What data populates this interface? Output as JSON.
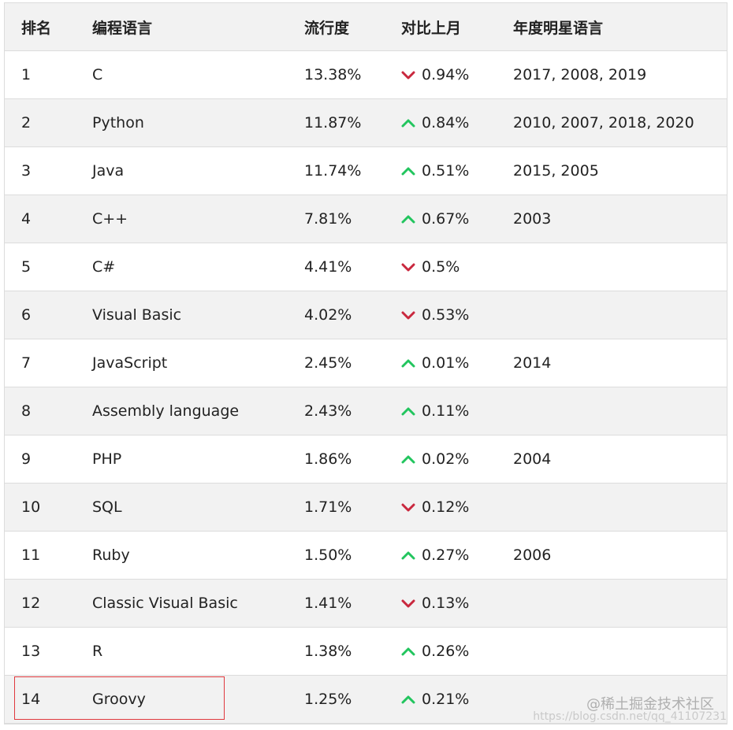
{
  "table": {
    "headers": {
      "rank": "排名",
      "language": "编程语言",
      "popularity": "流行度",
      "change": "对比上月",
      "star_years": "年度明星语言"
    },
    "rows": [
      {
        "rank": "1",
        "language": "C",
        "popularity": "13.38%",
        "direction": "down",
        "change": "0.94%",
        "star_years": "2017, 2008, 2019"
      },
      {
        "rank": "2",
        "language": "Python",
        "popularity": "11.87%",
        "direction": "up",
        "change": "0.84%",
        "star_years": "2010, 2007, 2018, 2020"
      },
      {
        "rank": "3",
        "language": "Java",
        "popularity": "11.74%",
        "direction": "up",
        "change": "0.51%",
        "star_years": "2015, 2005"
      },
      {
        "rank": "4",
        "language": "C++",
        "popularity": "7.81%",
        "direction": "up",
        "change": "0.67%",
        "star_years": "2003"
      },
      {
        "rank": "5",
        "language": "C#",
        "popularity": "4.41%",
        "direction": "down",
        "change": "0.5%",
        "star_years": ""
      },
      {
        "rank": "6",
        "language": "Visual Basic",
        "popularity": "4.02%",
        "direction": "down",
        "change": "0.53%",
        "star_years": ""
      },
      {
        "rank": "7",
        "language": "JavaScript",
        "popularity": "2.45%",
        "direction": "up",
        "change": "0.01%",
        "star_years": "2014"
      },
      {
        "rank": "8",
        "language": "Assembly language",
        "popularity": "2.43%",
        "direction": "up",
        "change": "0.11%",
        "star_years": ""
      },
      {
        "rank": "9",
        "language": "PHP",
        "popularity": "1.86%",
        "direction": "up",
        "change": "0.02%",
        "star_years": "2004"
      },
      {
        "rank": "10",
        "language": "SQL",
        "popularity": "1.71%",
        "direction": "down",
        "change": "0.12%",
        "star_years": ""
      },
      {
        "rank": "11",
        "language": "Ruby",
        "popularity": "1.50%",
        "direction": "up",
        "change": "0.27%",
        "star_years": "2006"
      },
      {
        "rank": "12",
        "language": "Classic Visual Basic",
        "popularity": "1.41%",
        "direction": "down",
        "change": "0.13%",
        "star_years": ""
      },
      {
        "rank": "13",
        "language": "R",
        "popularity": "1.38%",
        "direction": "up",
        "change": "0.26%",
        "star_years": ""
      },
      {
        "rank": "14",
        "language": "Groovy",
        "popularity": "1.25%",
        "direction": "up",
        "change": "0.21%",
        "star_years": ""
      }
    ]
  },
  "icons": {
    "up": "arrow-up-icon",
    "down": "arrow-down-icon"
  },
  "colors": {
    "up": "#22c55e",
    "down": "#c9283e",
    "highlight": "#e0393e",
    "row_alt": "#f2f2f2"
  },
  "watermark": {
    "text": "@稀土掘金技术社区",
    "url": "https://blog.csdn.net/qq_41107231"
  }
}
